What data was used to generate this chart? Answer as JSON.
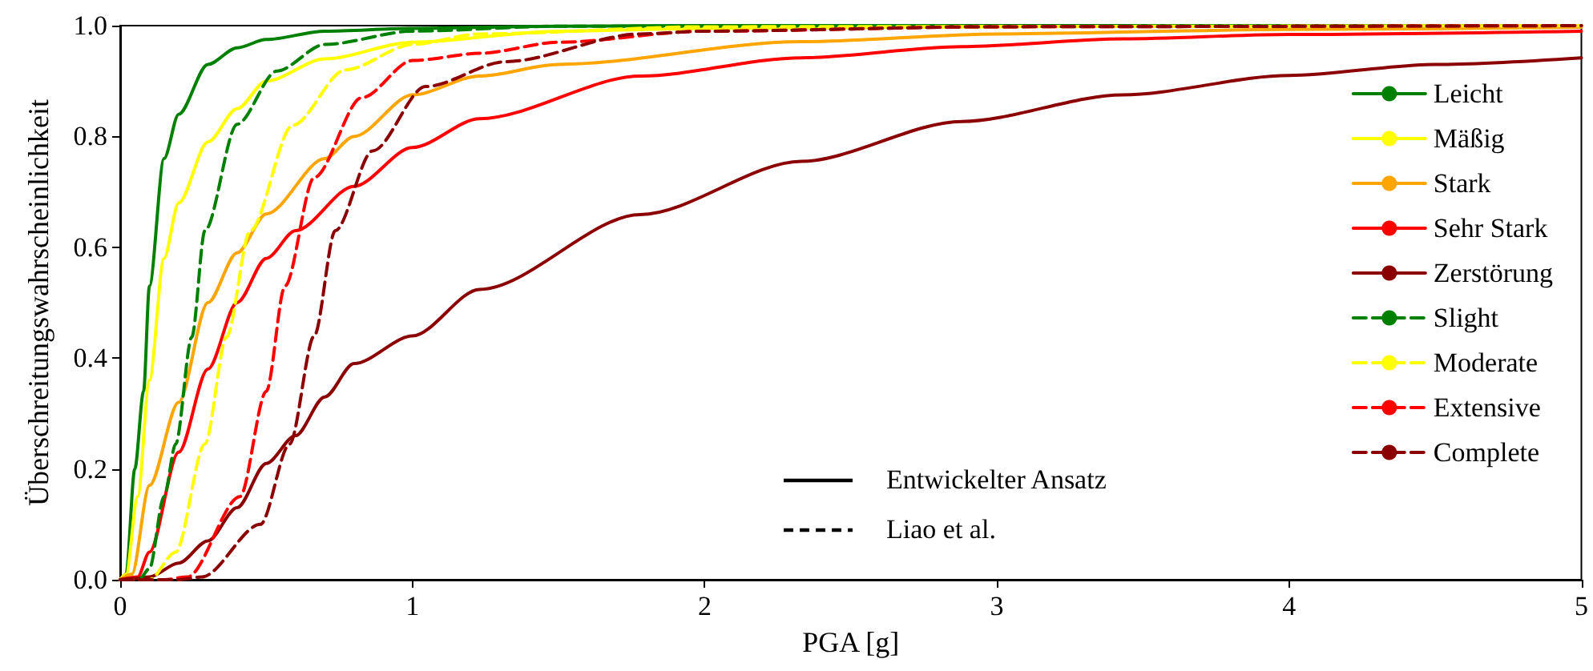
{
  "chart_data": {
    "type": "line",
    "xlabel": "PGA [g]",
    "ylabel": "Überschreitungswahrscheinlichkeit",
    "xlim": [
      0,
      5
    ],
    "xticks": [
      0,
      1,
      2,
      3,
      4,
      5
    ],
    "ylim": [
      0,
      1
    ],
    "yticks": [
      {
        "value": 0,
        "label": "0.0"
      },
      {
        "value": 0.2,
        "label": "0.2"
      },
      {
        "value": 0.4,
        "label": "0.4"
      },
      {
        "value": 0.6,
        "label": "0.6"
      },
      {
        "value": 0.8,
        "label": "0.8"
      },
      {
        "value": 1,
        "label": "1.0"
      }
    ],
    "grid": false,
    "legend": "right",
    "marker": "none",
    "series": [
      {
        "name": "Leicht",
        "color": "#008000",
        "line_style": "solid",
        "x": [
          0,
          0.02,
          0.05,
          0.08,
          0.1,
          0.15,
          0.2,
          0.3,
          0.4,
          0.5,
          0.7,
          1,
          1.5,
          2,
          3,
          4,
          5
        ],
        "values": [
          0,
          0.01,
          0.2,
          0.34,
          0.53,
          0.76,
          0.84,
          0.93,
          0.96,
          0.975,
          0.99,
          0.995,
          0.999,
          1,
          1,
          1,
          1
        ]
      },
      {
        "name": "Mäßig",
        "color": "#ffff00",
        "line_style": "solid",
        "x": [
          0,
          0.02,
          0.06,
          0.1,
          0.15,
          0.2,
          0.3,
          0.4,
          0.5,
          0.7,
          1,
          1.5,
          2,
          3,
          4,
          5
        ],
        "values": [
          0,
          0.01,
          0.15,
          0.36,
          0.58,
          0.68,
          0.79,
          0.85,
          0.9,
          0.94,
          0.97,
          0.99,
          0.995,
          0.998,
          0.999,
          1
        ]
      },
      {
        "name": "Stark",
        "color": "#ffa500",
        "line_style": "solid",
        "x": [
          0,
          0.04,
          0.1,
          0.2,
          0.3,
          0.4,
          0.5,
          0.7,
          0.8,
          1,
          1.23,
          1.5,
          2.33,
          3,
          4,
          5
        ],
        "values": [
          0,
          0.01,
          0.17,
          0.32,
          0.5,
          0.59,
          0.66,
          0.76,
          0.8,
          0.875,
          0.909,
          0.93,
          0.971,
          0.985,
          0.993,
          0.997
        ]
      },
      {
        "name": "Sehr Stark",
        "color": "#ff0000",
        "line_style": "solid",
        "x": [
          0,
          0.06,
          0.1,
          0.2,
          0.3,
          0.4,
          0.5,
          0.6,
          0.8,
          1,
          1.23,
          1.78,
          2.33,
          2.88,
          3.43,
          4,
          5
        ],
        "values": [
          0,
          0.005,
          0.05,
          0.23,
          0.38,
          0.5,
          0.58,
          0.63,
          0.71,
          0.78,
          0.832,
          0.909,
          0.942,
          0.962,
          0.976,
          0.984,
          0.99
        ]
      },
      {
        "name": "Zerstörung",
        "color": "#8b0000",
        "line_style": "solid",
        "x": [
          0,
          0.05,
          0.1,
          0.2,
          0.3,
          0.4,
          0.5,
          0.6,
          0.7,
          0.8,
          1,
          1.23,
          1.78,
          2.33,
          2.88,
          3.43,
          4,
          4.5,
          5
        ],
        "values": [
          0,
          0.002,
          0.005,
          0.03,
          0.07,
          0.13,
          0.21,
          0.26,
          0.33,
          0.39,
          0.44,
          0.524,
          0.659,
          0.755,
          0.827,
          0.875,
          0.91,
          0.93,
          0.942
        ]
      },
      {
        "name": "Slight",
        "color": "#008000",
        "line_style": "dashed",
        "x": [
          0,
          0.064,
          0.1,
          0.15,
          0.19,
          0.245,
          0.29,
          0.4,
          0.536,
          0.7,
          1,
          1.5,
          5
        ],
        "values": [
          0,
          0,
          0.02,
          0.15,
          0.245,
          0.438,
          0.63,
          0.822,
          0.918,
          0.966,
          0.99,
          0.999,
          1
        ]
      },
      {
        "name": "Moderate",
        "color": "#ffff00",
        "line_style": "dashed",
        "x": [
          0,
          0.1,
          0.19,
          0.29,
          0.364,
          0.445,
          0.59,
          0.77,
          1,
          1.23,
          2,
          5
        ],
        "values": [
          0,
          0,
          0.05,
          0.245,
          0.438,
          0.63,
          0.82,
          0.92,
          0.966,
          0.985,
          0.998,
          1
        ]
      },
      {
        "name": "Extensive",
        "color": "#ff0000",
        "line_style": "dashed",
        "x": [
          0,
          0.15,
          0.23,
          0.41,
          0.5,
          0.564,
          0.664,
          0.827,
          1,
          1.23,
          1.5,
          2,
          3,
          5
        ],
        "values": [
          0,
          0,
          0.005,
          0.15,
          0.34,
          0.53,
          0.726,
          0.87,
          0.937,
          0.95,
          0.97,
          0.99,
          0.998,
          1
        ]
      },
      {
        "name": "Complete",
        "color": "#8b0000",
        "line_style": "dashed",
        "x": [
          0,
          0.2,
          0.28,
          0.48,
          0.58,
          0.664,
          0.736,
          0.864,
          1.045,
          1.32,
          1.78,
          2,
          3,
          5
        ],
        "values": [
          0,
          0,
          0.005,
          0.1,
          0.245,
          0.44,
          0.63,
          0.774,
          0.89,
          0.935,
          0.985,
          0.99,
          0.998,
          1
        ]
      }
    ],
    "annotations": [
      "Entwickelter Ansatz",
      "Liao et al."
    ]
  }
}
